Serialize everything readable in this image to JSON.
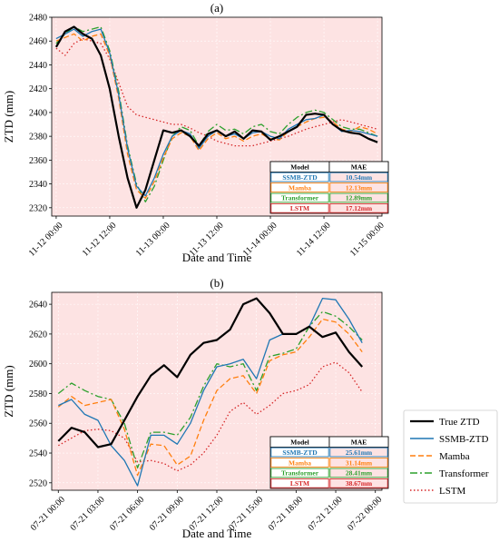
{
  "chart_data": [
    {
      "type": "line",
      "title": "(a)",
      "xlabel": "Date and Time",
      "ylabel": "ZTD (mm)",
      "xlim": [
        -0.5,
        36.5
      ],
      "ylim": [
        2313,
        2480
      ],
      "xticks": [
        0,
        6,
        12,
        18,
        24,
        30,
        36
      ],
      "xtick_labels": [
        "11-12 00:00",
        "11-12 12:00",
        "11-13 00:00",
        "11-13 12:00",
        "11-14 00:00",
        "11-14 12:00",
        "11-15 00:00"
      ],
      "yticks": [
        2320,
        2340,
        2360,
        2380,
        2400,
        2420,
        2440,
        2460,
        2480
      ],
      "series": [
        {
          "name": "True ZTD",
          "color": "#000000",
          "style": "solid",
          "x": [
            0,
            1,
            2,
            3,
            4,
            5,
            6,
            7,
            8,
            9,
            10,
            11,
            12,
            13,
            14,
            15,
            16,
            17,
            18,
            19,
            20,
            21,
            22,
            23,
            24,
            25,
            26,
            27,
            28,
            29,
            30,
            31,
            32,
            33,
            34,
            35,
            36
          ],
          "values": [
            2455,
            2468,
            2472,
            2466,
            2462,
            2448,
            2420,
            2380,
            2345,
            2320,
            2335,
            2360,
            2385,
            2383,
            2385,
            2380,
            2372,
            2382,
            2385,
            2380,
            2384,
            2378,
            2385,
            2384,
            2377,
            2380,
            2384,
            2388,
            2398,
            2399,
            2398,
            2390,
            2385,
            2383,
            2382,
            2378,
            2375
          ]
        },
        {
          "name": "SSMB-ZTD",
          "color": "#1f77b4",
          "style": "solid",
          "x": [
            0,
            1,
            2,
            3,
            4,
            5,
            6,
            7,
            8,
            9,
            10,
            11,
            12,
            13,
            14,
            15,
            16,
            17,
            18,
            19,
            20,
            21,
            22,
            23,
            24,
            25,
            26,
            27,
            28,
            29,
            30,
            31,
            32,
            33,
            34,
            35,
            36
          ],
          "values": [
            2462,
            2466,
            2470,
            2464,
            2468,
            2470,
            2450,
            2415,
            2370,
            2338,
            2330,
            2345,
            2365,
            2380,
            2385,
            2382,
            2370,
            2380,
            2385,
            2380,
            2382,
            2378,
            2383,
            2384,
            2380,
            2378,
            2386,
            2390,
            2394,
            2395,
            2398,
            2390,
            2384,
            2385,
            2384,
            2382,
            2380
          ]
        },
        {
          "name": "Mamba",
          "color": "#ff7f0e",
          "style": "dashed",
          "x": [
            0,
            1,
            2,
            3,
            4,
            5,
            6,
            7,
            8,
            9,
            10,
            11,
            12,
            13,
            14,
            15,
            16,
            17,
            18,
            19,
            20,
            21,
            22,
            23,
            24,
            25,
            26,
            27,
            28,
            29,
            30,
            31,
            32,
            33,
            34,
            35,
            36
          ],
          "values": [
            2460,
            2463,
            2466,
            2460,
            2464,
            2466,
            2448,
            2412,
            2365,
            2335,
            2328,
            2342,
            2362,
            2378,
            2383,
            2380,
            2368,
            2378,
            2383,
            2378,
            2380,
            2376,
            2380,
            2382,
            2378,
            2377,
            2384,
            2388,
            2392,
            2395,
            2396,
            2392,
            2386,
            2384,
            2388,
            2386,
            2382
          ]
        },
        {
          "name": "Transformer",
          "color": "#2ca02c",
          "style": "dashdot",
          "x": [
            0,
            1,
            2,
            3,
            4,
            5,
            6,
            7,
            8,
            9,
            10,
            11,
            12,
            13,
            14,
            15,
            16,
            17,
            18,
            19,
            20,
            21,
            22,
            23,
            24,
            25,
            26,
            27,
            28,
            29,
            30,
            31,
            32,
            33,
            34,
            35,
            36
          ],
          "values": [
            2458,
            2466,
            2472,
            2468,
            2470,
            2472,
            2452,
            2418,
            2372,
            2340,
            2325,
            2338,
            2360,
            2380,
            2388,
            2385,
            2372,
            2384,
            2390,
            2385,
            2386,
            2382,
            2388,
            2390,
            2384,
            2382,
            2390,
            2396,
            2400,
            2402,
            2400,
            2394,
            2388,
            2386,
            2386,
            2383,
            2380
          ]
        },
        {
          "name": "LSTM",
          "color": "#d62728",
          "style": "dotted",
          "x": [
            0,
            1,
            2,
            3,
            4,
            5,
            6,
            7,
            8,
            9,
            10,
            11,
            12,
            13,
            14,
            15,
            16,
            17,
            18,
            19,
            20,
            21,
            22,
            23,
            24,
            25,
            26,
            27,
            28,
            29,
            30,
            31,
            32,
            33,
            34,
            35,
            36
          ],
          "values": [
            2454,
            2448,
            2458,
            2462,
            2460,
            2458,
            2445,
            2425,
            2405,
            2398,
            2396,
            2394,
            2392,
            2390,
            2390,
            2387,
            2383,
            2380,
            2376,
            2374,
            2372,
            2372,
            2372,
            2374,
            2376,
            2378,
            2380,
            2383,
            2386,
            2388,
            2390,
            2392,
            2394,
            2392,
            2390,
            2388,
            2386
          ]
        }
      ],
      "table": {
        "headers": [
          "Model",
          "MAE"
        ],
        "rows": [
          {
            "model": "SSMB-ZTD",
            "mae": "10.54mm",
            "color": "#1f77b4"
          },
          {
            "model": "Mamba",
            "mae": "12.13mm",
            "color": "#ff7f0e"
          },
          {
            "model": "Transformer",
            "mae": "12.89mm",
            "color": "#2ca02c"
          },
          {
            "model": "LSTM",
            "mae": "17.12mm",
            "color": "#d62728"
          }
        ]
      }
    },
    {
      "type": "line",
      "title": "(b)",
      "xlabel": "Date and Time",
      "ylabel": "ZTD (mm)",
      "xlim": [
        -0.5,
        24.5
      ],
      "ylim": [
        2515,
        2648
      ],
      "xticks": [
        0,
        3,
        6,
        9,
        12,
        15,
        18,
        21,
        24
      ],
      "xtick_labels": [
        "07-21 00:00",
        "07-21 03:00",
        "07-21 06:00",
        "07-21 09:00",
        "07-21 12:00",
        "07-21 15:00",
        "07-21 18:00",
        "07-21 21:00",
        "07-22 00:00"
      ],
      "yticks": [
        2520,
        2540,
        2560,
        2580,
        2600,
        2620,
        2640
      ],
      "series": [
        {
          "name": "True ZTD",
          "color": "#000000",
          "style": "solid",
          "x": [
            0,
            1,
            2,
            3,
            4,
            5,
            6,
            7,
            8,
            9,
            10,
            11,
            12,
            13,
            14,
            15,
            16,
            17,
            18,
            19,
            20,
            21,
            22,
            23
          ],
          "values": [
            2548,
            2557,
            2554,
            2544,
            2546,
            2562,
            2578,
            2592,
            2599,
            2591,
            2606,
            2614,
            2616,
            2623,
            2640,
            2644,
            2634,
            2620,
            2620,
            2625,
            2618,
            2621,
            2608,
            2598
          ]
        },
        {
          "name": "SSMB-ZTD",
          "color": "#1f77b4",
          "style": "solid",
          "x": [
            0,
            1,
            2,
            3,
            4,
            5,
            6,
            7,
            8,
            9,
            10,
            11,
            12,
            13,
            14,
            15,
            16,
            17,
            18,
            19,
            20,
            21,
            22,
            23
          ],
          "values": [
            2572,
            2576,
            2566,
            2562,
            2545,
            2535,
            2518,
            2552,
            2552,
            2546,
            2560,
            2582,
            2598,
            2600,
            2603,
            2590,
            2616,
            2620,
            2620,
            2625,
            2644,
            2643,
            2630,
            2614
          ]
        },
        {
          "name": "Mamba",
          "color": "#ff7f0e",
          "style": "dashed",
          "x": [
            0,
            1,
            2,
            3,
            4,
            5,
            6,
            7,
            8,
            9,
            10,
            11,
            12,
            13,
            14,
            15,
            16,
            17,
            18,
            19,
            20,
            21,
            22,
            23
          ],
          "values": [
            2571,
            2578,
            2572,
            2574,
            2576,
            2556,
            2525,
            2546,
            2545,
            2532,
            2538,
            2562,
            2582,
            2590,
            2592,
            2580,
            2602,
            2606,
            2608,
            2618,
            2630,
            2628,
            2620,
            2608
          ]
        },
        {
          "name": "Transformer",
          "color": "#2ca02c",
          "style": "dashdot",
          "x": [
            0,
            1,
            2,
            3,
            4,
            5,
            6,
            7,
            8,
            9,
            10,
            11,
            12,
            13,
            14,
            15,
            16,
            17,
            18,
            19,
            20,
            21,
            22,
            23
          ],
          "values": [
            2580,
            2587,
            2582,
            2578,
            2576,
            2560,
            2530,
            2554,
            2554,
            2552,
            2564,
            2585,
            2600,
            2598,
            2600,
            2582,
            2605,
            2607,
            2610,
            2625,
            2635,
            2632,
            2625,
            2616
          ]
        },
        {
          "name": "LSTM",
          "color": "#d62728",
          "style": "dotted",
          "x": [
            0,
            1,
            2,
            3,
            4,
            5,
            6,
            7,
            8,
            9,
            10,
            11,
            12,
            13,
            14,
            15,
            16,
            17,
            18,
            19,
            20,
            21,
            22,
            23
          ],
          "values": [
            2545,
            2550,
            2555,
            2556,
            2555,
            2550,
            2534,
            2535,
            2533,
            2528,
            2532,
            2540,
            2552,
            2568,
            2574,
            2566,
            2572,
            2580,
            2582,
            2586,
            2598,
            2601,
            2594,
            2581
          ]
        }
      ],
      "table": {
        "headers": [
          "Model",
          "MAE"
        ],
        "rows": [
          {
            "model": "SSMB-ZTD",
            "mae": "25.61mm",
            "color": "#1f77b4"
          },
          {
            "model": "Mamba",
            "mae": "31.14mm",
            "color": "#ff7f0e"
          },
          {
            "model": "Transformer",
            "mae": "28.41mm",
            "color": "#2ca02c"
          },
          {
            "model": "LSTM",
            "mae": "38.67mm",
            "color": "#d62728"
          }
        ]
      }
    }
  ],
  "legend": {
    "placement": "right-bottom",
    "entries": [
      {
        "name": "True ZTD",
        "color": "#000000",
        "style": "solid"
      },
      {
        "name": "SSMB-ZTD",
        "color": "#1f77b4",
        "style": "solid"
      },
      {
        "name": "Mamba",
        "color": "#ff7f0e",
        "style": "dashed"
      },
      {
        "name": "Transformer",
        "color": "#2ca02c",
        "style": "dashdot"
      },
      {
        "name": "LSTM",
        "color": "#d62728",
        "style": "dotted"
      }
    ]
  },
  "background_color": "#fde3e3"
}
